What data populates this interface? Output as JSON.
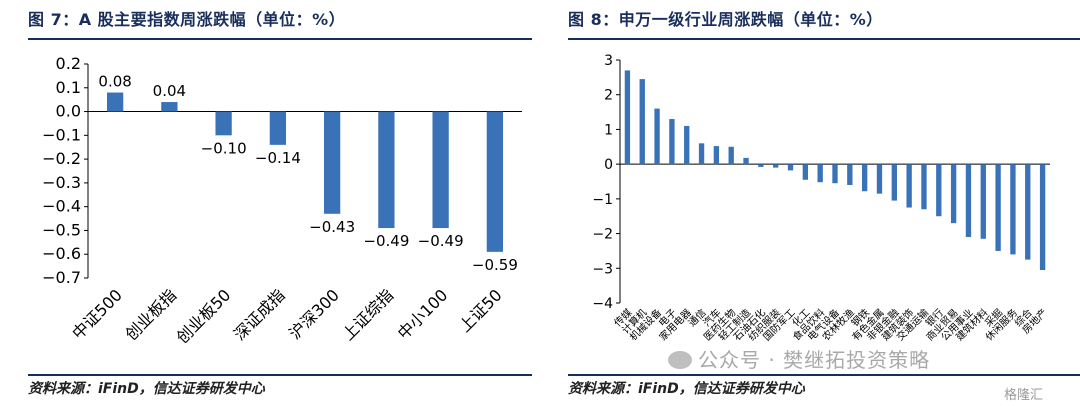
{
  "left_panel": {
    "title": "图 7：A 股主要指数周涨跌幅（单位：%）",
    "source": "资料来源：iFinD，信达证券研发中心"
  },
  "right_panel": {
    "title": "图 8：申万一级行业周涨跌幅（单位：%）",
    "source": "资料来源：iFinD，信达证券研发中心"
  },
  "watermark": {
    "text": "公众号 · 樊继拓投资策略",
    "brand": "格隆汇"
  },
  "colors": {
    "bar": "#3a72b8",
    "title": "#1a2e5c",
    "axis": "#000000"
  },
  "chart_data": [
    {
      "type": "bar",
      "categories": [
        "中证500",
        "创业板指",
        "创业板50",
        "深证成指",
        "沪深300",
        "上证综指",
        "中小100",
        "上证50"
      ],
      "values": [
        0.08,
        0.04,
        -0.1,
        -0.14,
        -0.43,
        -0.49,
        -0.49,
        -0.59
      ],
      "data_labels": [
        "0.08",
        "0.04",
        "−0.10",
        "−0.14",
        "−0.43",
        "−0.49",
        "−0.49",
        "−0.59"
      ],
      "yticks": [
        "0.2",
        "0.1",
        "0.0",
        "−0.1",
        "−0.2",
        "−0.3",
        "−0.4",
        "−0.5",
        "−0.6",
        "−0.7"
      ],
      "ylim": [
        -0.7,
        0.2
      ],
      "grid": false
    },
    {
      "type": "bar",
      "categories": [
        "传媒",
        "计算机",
        "机械设备",
        "电子",
        "家用电器",
        "通信",
        "汽车",
        "医药生物",
        "轻工制造",
        "石油石化",
        "纺织服装",
        "国防军工",
        "化工",
        "食品饮料",
        "电气设备",
        "农林牧渔",
        "钢铁",
        "有色金属",
        "非银金融",
        "建筑装饰",
        "交通运输",
        "银行",
        "商业贸易",
        "公用事业",
        "建筑材料",
        "采掘",
        "休闲服务",
        "综合",
        "房地产"
      ],
      "values": [
        2.7,
        2.45,
        1.6,
        1.3,
        1.1,
        0.6,
        0.52,
        0.5,
        0.18,
        -0.08,
        -0.1,
        -0.18,
        -0.45,
        -0.52,
        -0.55,
        -0.6,
        -0.78,
        -0.85,
        -1.05,
        -1.25,
        -1.3,
        -1.5,
        -1.7,
        -2.1,
        -2.15,
        -2.5,
        -2.6,
        -2.75,
        -3.05
      ],
      "yticks": [
        "3",
        "2",
        "1",
        "0",
        "−1",
        "−2",
        "−3",
        "−4"
      ],
      "ylim": [
        -4,
        3
      ],
      "grid": false
    }
  ]
}
